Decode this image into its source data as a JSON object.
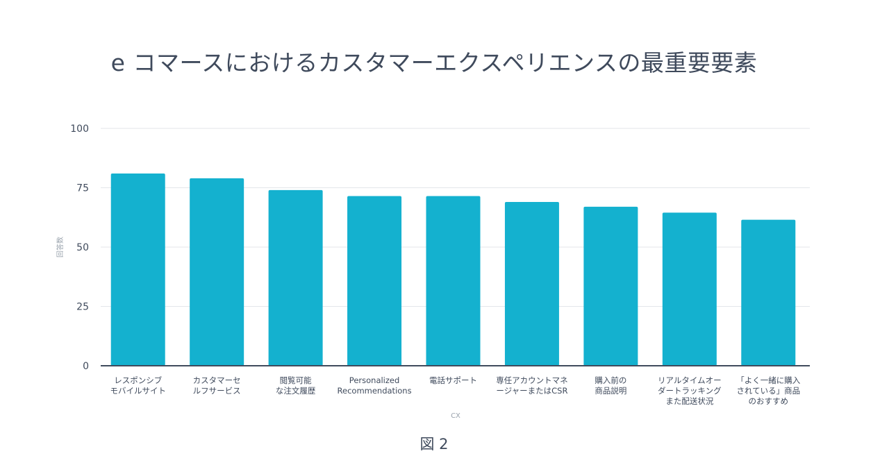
{
  "chart_data": {
    "type": "bar",
    "title": "e コマースにおけるカスタマーエクスペリエンスの最重要要素",
    "xlabel": "CX",
    "ylabel": "回答数",
    "ylim": [
      0,
      100
    ],
    "yticks": [
      0,
      25,
      50,
      75,
      100
    ],
    "grid": true,
    "categories": [
      [
        "レスポンシブ",
        "モバイルサイト"
      ],
      [
        "カスタマーセ",
        "ルフサービス"
      ],
      [
        "閲覧可能",
        "な注文履歴"
      ],
      [
        "Personalized",
        "Recommendations"
      ],
      [
        "電話サポート"
      ],
      [
        "専任アカウントマネ",
        "ージャーまたはCSR"
      ],
      [
        "購入前の",
        "商品説明"
      ],
      [
        "リアルタイムオー",
        "ダートラッキング",
        "また配送状況"
      ],
      [
        "「よく一緒に購入",
        "されている」商品",
        "のおすすめ"
      ]
    ],
    "values": [
      81,
      79,
      74,
      71.5,
      71.5,
      69,
      67,
      64.5,
      61.5
    ],
    "bar_color": "#14b1cf",
    "grid_color": "#e3e6ea",
    "axis_color": "#3f4a5c"
  },
  "caption": "図 2"
}
